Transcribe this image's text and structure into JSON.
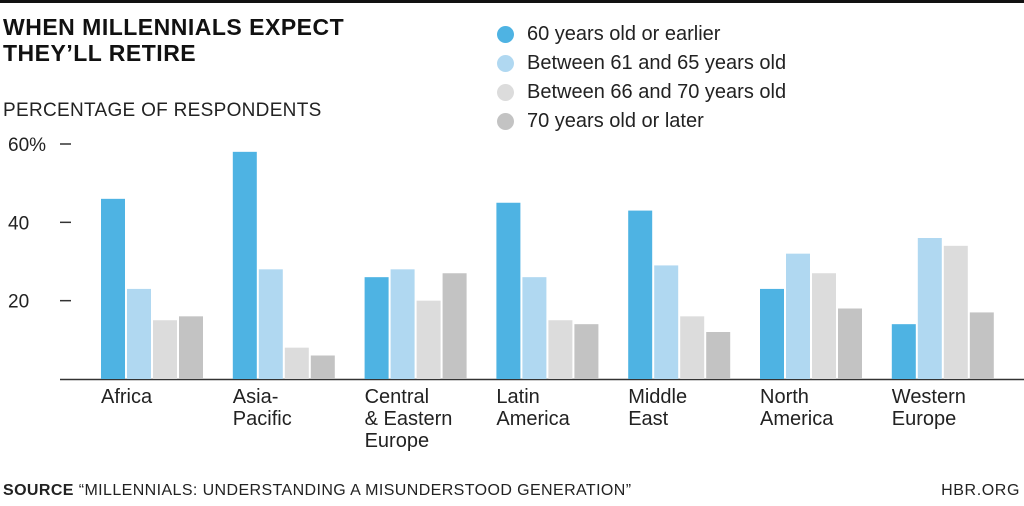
{
  "chart_data": {
    "type": "bar",
    "title": "WHEN MILLENNIALS EXPECT THEY’LL RETIRE",
    "subtitle": "PERCENTAGE OF RESPONDENTS",
    "categories": [
      [
        "Africa"
      ],
      [
        "Asia-",
        "Pacific"
      ],
      [
        "Central",
        "& Eastern",
        "Europe"
      ],
      [
        "Latin",
        "America"
      ],
      [
        "Middle",
        "East"
      ],
      [
        "North",
        "America"
      ],
      [
        "Western",
        "Europe"
      ]
    ],
    "series": [
      {
        "name": "60 years old or earlier",
        "color": "#4eb3e3",
        "values": [
          46,
          58,
          26,
          45,
          43,
          23,
          14
        ]
      },
      {
        "name": "Between 61 and 65 years old",
        "color": "#b0d8f1",
        "values": [
          23,
          28,
          28,
          26,
          29,
          32,
          36
        ]
      },
      {
        "name": "Between 66 and 70 years old",
        "color": "#dcdcdc",
        "values": [
          15,
          8,
          20,
          15,
          16,
          27,
          34
        ]
      },
      {
        "name": "70 years old or later",
        "color": "#c3c3c3",
        "values": [
          16,
          6,
          27,
          14,
          12,
          18,
          17
        ]
      }
    ],
    "yticks": [
      {
        "value": 20,
        "label": "20"
      },
      {
        "value": 40,
        "label": "40"
      },
      {
        "value": 60,
        "label": "60%"
      }
    ],
    "ylim": [
      0,
      60
    ],
    "grid": false,
    "legend": "top-right"
  },
  "footer": {
    "source_label": "SOURCE",
    "source_text": "“MILLENNIALS: UNDERSTANDING A MISUNDERSTOOD GENERATION”",
    "brand": "HBR.ORG"
  }
}
